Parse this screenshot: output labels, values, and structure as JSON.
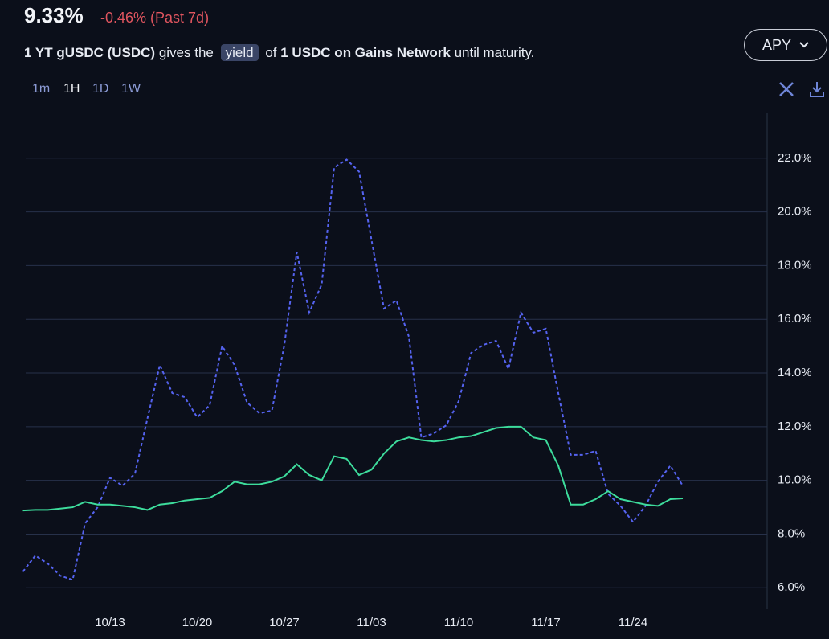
{
  "header": {
    "value": "9.33%",
    "change": "-0.46% (Past 7d)",
    "asset": "1 YT gUSDC (USDC)",
    "gives": "gives the",
    "chip": "yield",
    "of": "of",
    "underlying": "1 USDC on Gains Network",
    "until": "until maturity."
  },
  "controls": {
    "mode": "APY",
    "intervals": [
      "1m",
      "1H",
      "1D",
      "1W"
    ]
  },
  "chart_data": {
    "type": "line",
    "categories": [
      null,
      null,
      null,
      null,
      null,
      null,
      null,
      "10/13",
      null,
      null,
      null,
      null,
      null,
      null,
      "10/20",
      null,
      null,
      null,
      null,
      null,
      null,
      "10/27",
      null,
      null,
      null,
      null,
      null,
      null,
      "11/03",
      null,
      null,
      null,
      null,
      null,
      null,
      "11/10",
      null,
      null,
      null,
      null,
      null,
      null,
      "11/17",
      null,
      null,
      null,
      null,
      null,
      null,
      "11/24",
      null,
      null,
      null,
      null
    ],
    "series": [
      {
        "color": "#5563f0",
        "dashed": true,
        "values": [
          6.6,
          7.2,
          6.9,
          6.45,
          6.3,
          8.4,
          9.0,
          10.1,
          9.8,
          10.25,
          12.3,
          14.3,
          13.25,
          13.1,
          12.35,
          12.8,
          15.0,
          14.3,
          12.9,
          12.5,
          12.6,
          15.05,
          18.5,
          16.25,
          17.3,
          21.65,
          21.95,
          21.5,
          18.95,
          16.4,
          16.7,
          15.35,
          11.6,
          11.75,
          12.05,
          12.95,
          14.75,
          15.05,
          15.2,
          14.15,
          16.25,
          15.5,
          15.65,
          13.25,
          10.95,
          10.95,
          11.1,
          9.5,
          9.05,
          8.45,
          9.05,
          9.95,
          10.55,
          9.8
        ]
      },
      {
        "color": "#3ddc9c",
        "dashed": false,
        "values": [
          8.88,
          8.9,
          8.9,
          8.95,
          9.0,
          9.2,
          9.1,
          9.1,
          9.05,
          9.0,
          8.9,
          9.1,
          9.15,
          9.25,
          9.3,
          9.35,
          9.6,
          9.95,
          9.85,
          9.85,
          9.95,
          10.15,
          10.6,
          10.2,
          10.0,
          10.9,
          10.8,
          10.2,
          10.4,
          11.0,
          11.45,
          11.6,
          11.5,
          11.45,
          11.5,
          11.6,
          11.65,
          11.8,
          11.95,
          12.0,
          12.0,
          11.6,
          11.5,
          10.55,
          9.1,
          9.1,
          9.3,
          9.6,
          9.3,
          9.2,
          9.1,
          9.05,
          9.3,
          9.33
        ]
      }
    ],
    "ylim": [
      5.2,
      23.7
    ],
    "yticks": [
      {
        "value": 6,
        "label": "6.0%"
      },
      {
        "value": 8,
        "label": "8.0%"
      },
      {
        "value": 10,
        "label": "10.0%"
      },
      {
        "value": 12,
        "label": "12.0%"
      },
      {
        "value": 14,
        "label": "14.0%"
      },
      {
        "value": 16,
        "label": "16.0%"
      },
      {
        "value": 18,
        "label": "18.0%"
      },
      {
        "value": 20,
        "label": "20.0%"
      },
      {
        "value": 22,
        "label": "22.0%"
      }
    ],
    "grid": true
  }
}
